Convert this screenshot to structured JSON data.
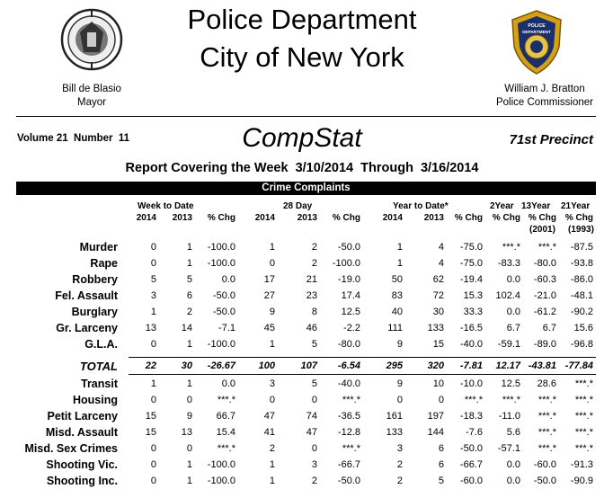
{
  "header": {
    "title_line1": "Police Department",
    "title_line2": "City of New York",
    "mayor_name": "Bill de Blasio",
    "mayor_title": "Mayor",
    "commissioner_name": "William J. Bratton",
    "commissioner_title": "Police Commissioner",
    "seal_icon": "nyc-seal-icon",
    "badge_icon": "nypd-badge-icon",
    "badge_text": "POLICE DEPARTMENT CITY OF NEW YORK"
  },
  "meta": {
    "volume": "Volume 21  Number  11",
    "report_name": "CompStat",
    "precinct": "71st Precinct",
    "report_covering": "Report Covering the Week  3/10/2014  Through  3/16/2014"
  },
  "table": {
    "section_title": "Crime Complaints",
    "group_headers": {
      "week": "Week to Date",
      "day28": "28 Day",
      "ytd": "Year to Date*",
      "y2": "2Year",
      "y13": "13Year",
      "y21": "21Year"
    },
    "col_headers": [
      "2014",
      "2013",
      "% Chg",
      "2014",
      "2013",
      "% Chg",
      "2014",
      "2013",
      "% Chg",
      "% Chg",
      "% Chg",
      "% Chg"
    ],
    "sub_headers": {
      "y13": "(2001)",
      "y21": "(1993)"
    },
    "rows": [
      {
        "label": "Murder",
        "v": [
          "0",
          "1",
          "-100.0",
          "1",
          "2",
          "-50.0",
          "1",
          "4",
          "-75.0",
          "***.*",
          "***.*",
          "-87.5"
        ]
      },
      {
        "label": "Rape",
        "v": [
          "0",
          "1",
          "-100.0",
          "0",
          "2",
          "-100.0",
          "1",
          "4",
          "-75.0",
          "-83.3",
          "-80.0",
          "-93.8"
        ]
      },
      {
        "label": "Robbery",
        "v": [
          "5",
          "5",
          "0.0",
          "17",
          "21",
          "-19.0",
          "50",
          "62",
          "-19.4",
          "0.0",
          "-60.3",
          "-86.0"
        ]
      },
      {
        "label": "Fel. Assault",
        "v": [
          "3",
          "6",
          "-50.0",
          "27",
          "23",
          "17.4",
          "83",
          "72",
          "15.3",
          "102.4",
          "-21.0",
          "-48.1"
        ]
      },
      {
        "label": "Burglary",
        "v": [
          "1",
          "2",
          "-50.0",
          "9",
          "8",
          "12.5",
          "40",
          "30",
          "33.3",
          "0.0",
          "-61.2",
          "-90.2"
        ]
      },
      {
        "label": "Gr. Larceny",
        "v": [
          "13",
          "14",
          "-7.1",
          "45",
          "46",
          "-2.2",
          "111",
          "133",
          "-16.5",
          "6.7",
          "6.7",
          "15.6"
        ]
      },
      {
        "label": "G.L.A.",
        "v": [
          "0",
          "1",
          "-100.0",
          "1",
          "5",
          "-80.0",
          "9",
          "15",
          "-40.0",
          "-59.1",
          "-89.0",
          "-96.8"
        ]
      }
    ],
    "total": {
      "label": "TOTAL",
      "v": [
        "22",
        "30",
        "-26.67",
        "100",
        "107",
        "-6.54",
        "295",
        "320",
        "-7.81",
        "12.17",
        "-43.81",
        "-77.84"
      ]
    },
    "rows2": [
      {
        "label": "Transit",
        "v": [
          "1",
          "1",
          "0.0",
          "3",
          "5",
          "-40.0",
          "9",
          "10",
          "-10.0",
          "12.5",
          "28.6",
          "***.*"
        ]
      },
      {
        "label": "Housing",
        "v": [
          "0",
          "0",
          "***.*",
          "0",
          "0",
          "***.*",
          "0",
          "0",
          "***.*",
          "***.*",
          "***.*",
          "***.*"
        ]
      },
      {
        "label": "Petit Larceny",
        "v": [
          "15",
          "9",
          "66.7",
          "47",
          "74",
          "-36.5",
          "161",
          "197",
          "-18.3",
          "-11.0",
          "***.*",
          "***.*"
        ]
      },
      {
        "label": "Misd. Assault",
        "v": [
          "15",
          "13",
          "15.4",
          "41",
          "47",
          "-12.8",
          "133",
          "144",
          "-7.6",
          "5.6",
          "***.*",
          "***.*"
        ]
      },
      {
        "label": "Misd. Sex Crimes",
        "v": [
          "0",
          "0",
          "***.*",
          "2",
          "0",
          "***.*",
          "3",
          "6",
          "-50.0",
          "-57.1",
          "***.*",
          "***.*"
        ]
      },
      {
        "label": "Shooting Vic.",
        "v": [
          "0",
          "1",
          "-100.0",
          "1",
          "3",
          "-66.7",
          "2",
          "6",
          "-66.7",
          "0.0",
          "-60.0",
          "-91.3"
        ]
      },
      {
        "label": "Shooting Inc.",
        "v": [
          "0",
          "1",
          "-100.0",
          "1",
          "2",
          "-50.0",
          "2",
          "5",
          "-60.0",
          "0.0",
          "-50.0",
          "-90.9"
        ]
      }
    ]
  }
}
